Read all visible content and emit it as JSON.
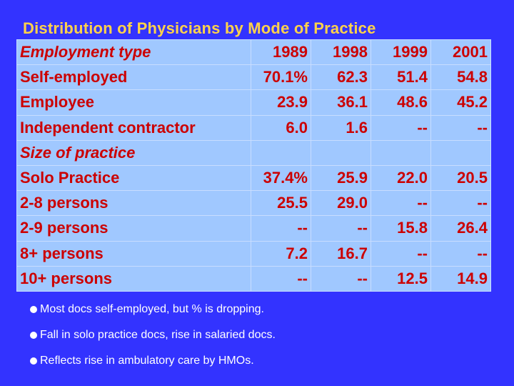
{
  "title": "Distribution of Physicians by Mode of Practice",
  "table": {
    "header": {
      "label": "Employment type",
      "years": [
        "1989",
        "1998",
        "1999",
        "2001"
      ]
    },
    "employment_rows": [
      {
        "label": "Self-employed",
        "values": [
          "70.1%",
          "62.3",
          "51.4",
          "54.8"
        ]
      },
      {
        "label": "Employee",
        "values": [
          "23.9",
          "36.1",
          "48.6",
          "45.2"
        ]
      },
      {
        "label": "Independent contractor",
        "values": [
          "6.0",
          "1.6",
          "--",
          "--"
        ]
      }
    ],
    "size_header": "Size of practice",
    "size_rows": [
      {
        "label": "Solo Practice",
        "values": [
          "37.4%",
          "25.9",
          "22.0",
          "20.5"
        ]
      },
      {
        "label": "2-8 persons",
        "values": [
          "25.5",
          "29.0",
          "--",
          "--"
        ]
      },
      {
        "label": "2-9 persons",
        "values": [
          "--",
          "--",
          "15.8",
          "26.4"
        ]
      },
      {
        "label": "8+ persons",
        "values": [
          "7.2",
          "16.7",
          "--",
          "--"
        ]
      },
      {
        "label": "10+ persons",
        "values": [
          "--",
          "--",
          "12.5",
          "14.9"
        ]
      }
    ]
  },
  "bullets": [
    "Most docs self-employed, but % is dropping.",
    "Fall in solo practice docs, rise in salaried docs.",
    "Reflects rise in ambulatory care by HMOs."
  ],
  "colors": {
    "background": "#3333ff",
    "title": "#ffd24a",
    "table_fill": "#a0c8ff",
    "table_text": "#cc0000",
    "bullet_text": "#ffffff"
  }
}
